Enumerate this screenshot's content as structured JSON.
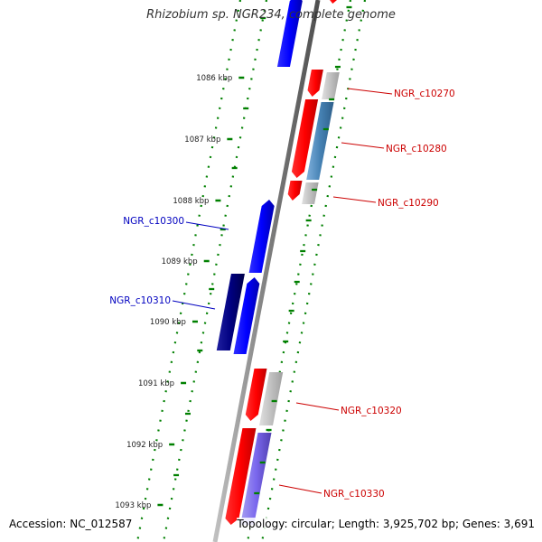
{
  "title": "Rhizobium sp. NGR234, complete genome",
  "accession": "Accession: NC_012587",
  "summary": "Topology: circular; Length: 3,925,702 bp; Genes: 3,691",
  "colors": {
    "backbone": "#808080",
    "ticks": "#008000",
    "forward_label": "#0000c0",
    "reverse_label": "#cc0000"
  },
  "ticks": [
    {
      "label": "1086 kbp"
    },
    {
      "label": "1087 kbp"
    },
    {
      "label": "1088 kbp"
    },
    {
      "label": "1089 kbp"
    },
    {
      "label": "1090 kbp"
    },
    {
      "label": "1091 kbp"
    },
    {
      "label": "1092 kbp"
    },
    {
      "label": "1093 kbp"
    }
  ],
  "genes": [
    {
      "label": "",
      "strand": "forward",
      "color": "#0000ee"
    },
    {
      "label": "",
      "strand": "reverse",
      "color": "#ee0000"
    },
    {
      "label": "NGR_c10270",
      "strand": "reverse",
      "color": "#ee0000",
      "feature_color": "#b8b8b8"
    },
    {
      "label": "NGR_c10280",
      "strand": "reverse",
      "color": "#ee0000",
      "feature_color": "#4682b4"
    },
    {
      "label": "NGR_c10290",
      "strand": "reverse",
      "color": "#ee0000",
      "feature_color": "#b8b8b8"
    },
    {
      "label": "NGR_c10300",
      "strand": "forward",
      "color": "#0000ee"
    },
    {
      "label": "NGR_c10310",
      "strand": "forward",
      "color": "#0000ee",
      "feature_color": "#00006e"
    },
    {
      "label": "NGR_c10320",
      "strand": "reverse",
      "color": "#ee0000",
      "feature_color": "#b8b8b8"
    },
    {
      "label": "NGR_c10330",
      "strand": "reverse",
      "color": "#ee0000",
      "feature_color": "#7a6ad4"
    }
  ]
}
